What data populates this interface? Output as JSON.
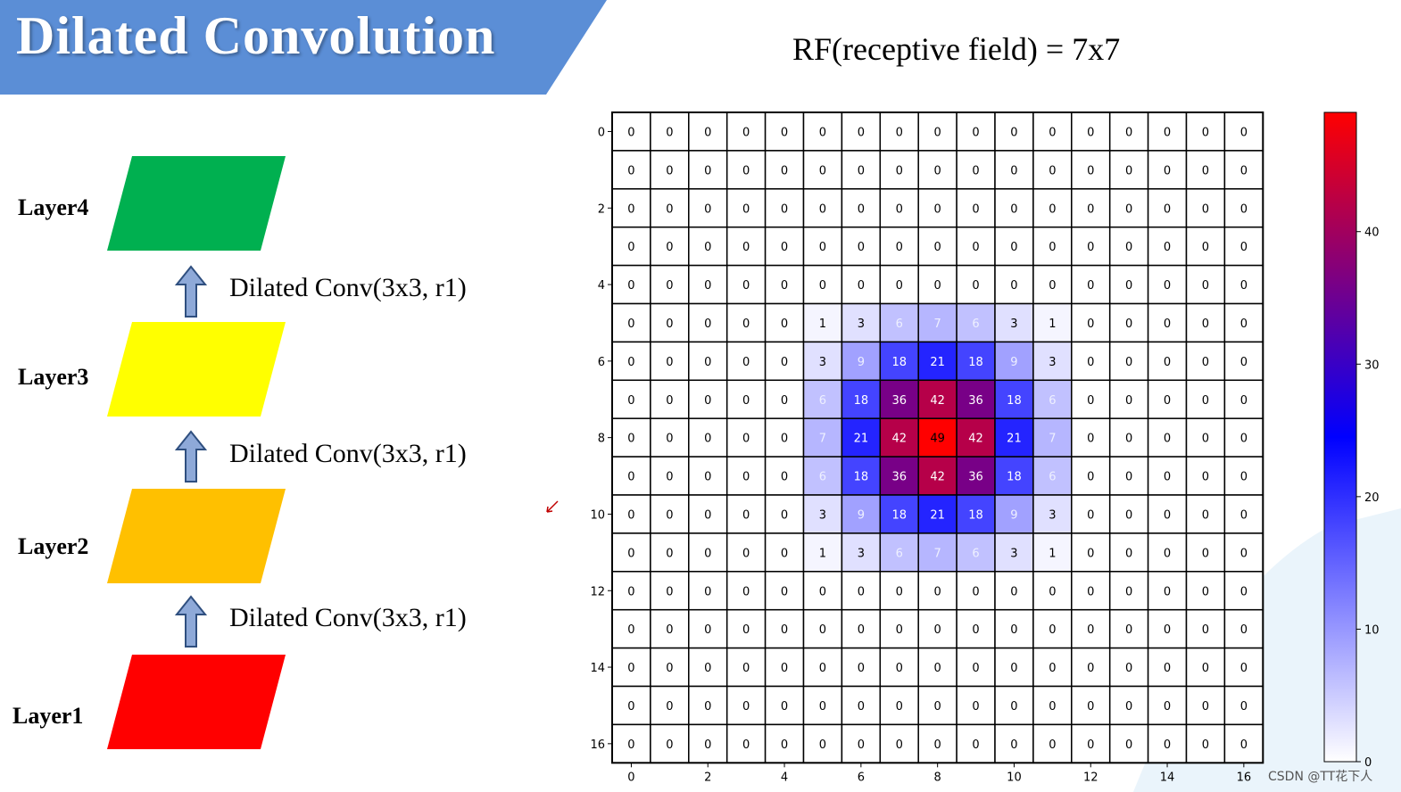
{
  "slide": {
    "title": "Dilated Convolution",
    "rf_caption": "RF(receptive field) = 7x7",
    "watermark": "CSDN @TT花下人"
  },
  "layers": [
    {
      "label": "Layer4",
      "color": "#00b050"
    },
    {
      "label": "Layer3",
      "color": "#ffff00"
    },
    {
      "label": "Layer2",
      "color": "#ffc000"
    },
    {
      "label": "Layer1",
      "color": "#ff0000"
    }
  ],
  "conv_labels": [
    "Dilated Conv(3x3, r1)",
    "Dilated Conv(3x3, r1)",
    "Dilated Conv(3x3, r1)"
  ],
  "colors": {
    "banner": "#5b8ed6",
    "arrow_fill": "#8ea9d8",
    "arrow_stroke": "#2f4f7f"
  },
  "chart_data": {
    "type": "heatmap",
    "rows": 17,
    "cols": 17,
    "values": [
      [
        0,
        0,
        0,
        0,
        0,
        0,
        0,
        0,
        0,
        0,
        0,
        0,
        0,
        0,
        0,
        0,
        0
      ],
      [
        0,
        0,
        0,
        0,
        0,
        0,
        0,
        0,
        0,
        0,
        0,
        0,
        0,
        0,
        0,
        0,
        0
      ],
      [
        0,
        0,
        0,
        0,
        0,
        0,
        0,
        0,
        0,
        0,
        0,
        0,
        0,
        0,
        0,
        0,
        0
      ],
      [
        0,
        0,
        0,
        0,
        0,
        0,
        0,
        0,
        0,
        0,
        0,
        0,
        0,
        0,
        0,
        0,
        0
      ],
      [
        0,
        0,
        0,
        0,
        0,
        0,
        0,
        0,
        0,
        0,
        0,
        0,
        0,
        0,
        0,
        0,
        0
      ],
      [
        0,
        0,
        0,
        0,
        0,
        1,
        3,
        6,
        7,
        6,
        3,
        1,
        0,
        0,
        0,
        0,
        0
      ],
      [
        0,
        0,
        0,
        0,
        0,
        3,
        9,
        18,
        21,
        18,
        9,
        3,
        0,
        0,
        0,
        0,
        0
      ],
      [
        0,
        0,
        0,
        0,
        0,
        6,
        18,
        36,
        42,
        36,
        18,
        6,
        0,
        0,
        0,
        0,
        0
      ],
      [
        0,
        0,
        0,
        0,
        0,
        7,
        21,
        42,
        49,
        42,
        21,
        7,
        0,
        0,
        0,
        0,
        0
      ],
      [
        0,
        0,
        0,
        0,
        0,
        6,
        18,
        36,
        42,
        36,
        18,
        6,
        0,
        0,
        0,
        0,
        0
      ],
      [
        0,
        0,
        0,
        0,
        0,
        3,
        9,
        18,
        21,
        18,
        9,
        3,
        0,
        0,
        0,
        0,
        0
      ],
      [
        0,
        0,
        0,
        0,
        0,
        1,
        3,
        6,
        7,
        6,
        3,
        1,
        0,
        0,
        0,
        0,
        0
      ],
      [
        0,
        0,
        0,
        0,
        0,
        0,
        0,
        0,
        0,
        0,
        0,
        0,
        0,
        0,
        0,
        0,
        0
      ],
      [
        0,
        0,
        0,
        0,
        0,
        0,
        0,
        0,
        0,
        0,
        0,
        0,
        0,
        0,
        0,
        0,
        0
      ],
      [
        0,
        0,
        0,
        0,
        0,
        0,
        0,
        0,
        0,
        0,
        0,
        0,
        0,
        0,
        0,
        0,
        0
      ],
      [
        0,
        0,
        0,
        0,
        0,
        0,
        0,
        0,
        0,
        0,
        0,
        0,
        0,
        0,
        0,
        0,
        0
      ],
      [
        0,
        0,
        0,
        0,
        0,
        0,
        0,
        0,
        0,
        0,
        0,
        0,
        0,
        0,
        0,
        0,
        0
      ]
    ],
    "x_ticks": [
      "0",
      "2",
      "4",
      "6",
      "8",
      "10",
      "12",
      "14",
      "16"
    ],
    "y_ticks": [
      "0",
      "2",
      "4",
      "6",
      "8",
      "10",
      "12",
      "14",
      "16"
    ],
    "colormap": "bwr",
    "vmin": 0,
    "vmax": 49,
    "colorbar_ticks": [
      "0",
      "10",
      "20",
      "30",
      "40"
    ],
    "grid": true
  }
}
